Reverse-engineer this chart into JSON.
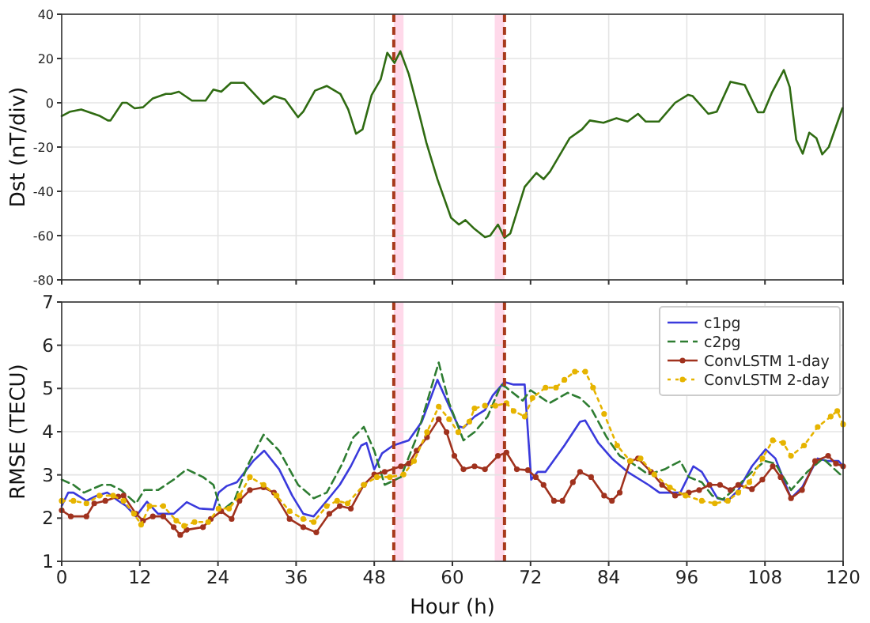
{
  "chart_data": [
    {
      "type": "line",
      "ylabel": "Dst (nT/div)",
      "xlim": [
        0,
        120
      ],
      "xticks": [
        0,
        12,
        24,
        36,
        48,
        60,
        72,
        84,
        96,
        108,
        120
      ],
      "ylim": [
        -80,
        40
      ],
      "yticks": [
        -80,
        -60,
        -40,
        -20,
        0,
        20,
        40
      ],
      "tick_labels": "y",
      "grid": true,
      "legend": false,
      "series": [
        {
          "color": "#2f6b12",
          "line_style": "solid",
          "marker": "none",
          "x": [
            0,
            1.3,
            3,
            5.9,
            7.1,
            7.5,
            9.3,
            10,
            11.2,
            12.5,
            14,
            16,
            16.8,
            18,
            20,
            22.1,
            23.3,
            24.5,
            26,
            28,
            31,
            32.6,
            34.3,
            36.3,
            37.1,
            38.9,
            40.7,
            42.8,
            44,
            45.2,
            46.2,
            47.6,
            49,
            50,
            51.1,
            52,
            53.3,
            54.9,
            56,
            57.7,
            59.8,
            61,
            62,
            63.4,
            65,
            65.8,
            67,
            68,
            68.9,
            71.1,
            72.9,
            74,
            75,
            78,
            79.9,
            81.1,
            83.2,
            85.2,
            86.9,
            88.5,
            89.7,
            91.7,
            94.2,
            96.2,
            96.9,
            99.3,
            100.6,
            102.7,
            104.9,
            106.9,
            107.8,
            109.1,
            110.9,
            111.8,
            112.8,
            113.8,
            114.8,
            115.9,
            116.8,
            117.8,
            119.9
          ],
          "values": [
            -6,
            -4,
            -3,
            -6,
            -8,
            -8,
            0,
            0,
            -2.5,
            -2,
            2,
            4,
            4,
            5,
            1,
            1,
            6,
            5,
            9,
            9,
            -0.5,
            3,
            1.5,
            -6.5,
            -4,
            5.5,
            7.6,
            4,
            -3,
            -14,
            -12,
            3.5,
            10.7,
            22.6,
            18,
            23.3,
            13,
            -5,
            -18,
            -34.5,
            -52,
            -55,
            -53,
            -57,
            -60.7,
            -60,
            -55,
            -61,
            -59,
            -38,
            -31.7,
            -34.5,
            -31,
            -16,
            -12,
            -8,
            -9,
            -7,
            -8.5,
            -5,
            -8.5,
            -8.5,
            0,
            3.6,
            3,
            -5,
            -4,
            9.5,
            8,
            -4.3,
            -4.3,
            4.8,
            14.8,
            7.1,
            -16.7,
            -23,
            -13.5,
            -16,
            -23.3,
            -20,
            -2.4
          ]
        }
      ],
      "ref_lines": [
        {
          "axis": "x",
          "value": 51,
          "color": "#a83a1c",
          "line_style": "dashed"
        },
        {
          "axis": "x",
          "value": 68,
          "color": "#a83a1c",
          "line_style": "dashed"
        }
      ],
      "bands": [
        {
          "axis": "x",
          "from": 51,
          "to": 52.5,
          "color": "#ffd9ea"
        },
        {
          "axis": "x",
          "from": 66.5,
          "to": 68,
          "color": "#ffd9ea"
        }
      ]
    },
    {
      "type": "line",
      "xlabel": "Hour (h)",
      "ylabel": "RMSE (TECU)",
      "xlim": [
        0,
        120
      ],
      "xticks": [
        0,
        12,
        24,
        36,
        48,
        60,
        72,
        84,
        96,
        108,
        120
      ],
      "ylim": [
        1,
        7
      ],
      "yticks": [
        1,
        2,
        3,
        4,
        5,
        6,
        7
      ],
      "grid": true,
      "legend": "top right",
      "series": [
        {
          "name": "c1pg",
          "color": "#3a3adc",
          "line_style": "solid",
          "marker": "none",
          "x": [
            0,
            1,
            1.8,
            3.8,
            5.4,
            7,
            8.7,
            9.9,
            11.4,
            13.1,
            14.8,
            17.2,
            19.2,
            21.2,
            23.3,
            24.1,
            25.3,
            26.9,
            29.4,
            31.1,
            33.4,
            35.4,
            37.1,
            38.7,
            40.7,
            42.7,
            44.4,
            46,
            46.8,
            48,
            49.2,
            50.9,
            52.1,
            53.3,
            55.3,
            57.7,
            59.3,
            60.9,
            61.7,
            63.4,
            65,
            66.2,
            68,
            69.4,
            71.1,
            72.1,
            73.1,
            74.3,
            77.2,
            79.6,
            80.4,
            82.4,
            84.5,
            86.9,
            90.1,
            91.8,
            95,
            97,
            98.3,
            100.7,
            102.3,
            103.9,
            106,
            108.1,
            109.6,
            112,
            113.7,
            116.1,
            117.7,
            119.3,
            120
          ],
          "values": [
            2.28,
            2.59,
            2.59,
            2.4,
            2.52,
            2.59,
            2.4,
            2.28,
            2.04,
            2.38,
            2.1,
            2.1,
            2.37,
            2.22,
            2.2,
            2.59,
            2.74,
            2.83,
            3.32,
            3.56,
            3.13,
            2.52,
            2.1,
            2.04,
            2.4,
            2.77,
            3.2,
            3.68,
            3.74,
            3.13,
            3.5,
            3.68,
            3.74,
            3.8,
            4.23,
            5.2,
            4.66,
            4.13,
            4.09,
            4.35,
            4.5,
            4.84,
            5.15,
            5.09,
            5.09,
            2.89,
            3.07,
            3.07,
            3.68,
            4.23,
            4.26,
            3.74,
            3.38,
            3.07,
            2.77,
            2.59,
            2.59,
            3.2,
            3.07,
            2.46,
            2.4,
            2.65,
            3.2,
            3.59,
            3.38,
            2.46,
            2.71,
            3.38,
            3.32,
            3.32,
            3.2
          ]
        },
        {
          "name": "c2pg",
          "color": "#2e7d32",
          "line_style": "dashed",
          "marker": "none",
          "x": [
            0,
            1.8,
            3.4,
            6.2,
            7.5,
            9.1,
            11.4,
            12.7,
            14.8,
            17.2,
            19.2,
            21.7,
            23.3,
            24.5,
            26.5,
            28.5,
            31,
            33.4,
            36.3,
            38.7,
            40.7,
            43.1,
            44.8,
            46.4,
            48,
            49.6,
            52.1,
            54.5,
            57.9,
            59.5,
            61.7,
            63.4,
            65.4,
            67.5,
            68.3,
            70.8,
            72,
            74.9,
            77.7,
            79.6,
            81.3,
            83.7,
            85.7,
            87.7,
            90.1,
            92.6,
            95,
            96.3,
            98.3,
            99.9,
            101.5,
            103.6,
            106,
            108,
            109.6,
            112,
            114.5,
            116.9,
            120
          ],
          "values": [
            2.89,
            2.77,
            2.59,
            2.77,
            2.77,
            2.65,
            2.34,
            2.65,
            2.65,
            2.89,
            3.13,
            2.95,
            2.77,
            2.16,
            2.4,
            3.2,
            3.93,
            3.56,
            2.77,
            2.46,
            2.59,
            3.26,
            3.87,
            4.11,
            3.56,
            2.77,
            2.95,
            3.87,
            5.6,
            4.66,
            3.8,
            3.99,
            4.35,
            5.09,
            5.02,
            4.72,
            4.96,
            4.66,
            4.9,
            4.78,
            4.54,
            3.87,
            3.44,
            3.26,
            3.01,
            3.13,
            3.32,
            2.95,
            2.83,
            2.52,
            2.43,
            2.71,
            3.07,
            3.32,
            3.26,
            2.65,
            3.07,
            3.38,
            2.95
          ]
        },
        {
          "name": "ConvLSTM 1-day",
          "color": "#a0321e",
          "line_style": "solid",
          "marker": "circle",
          "x": [
            0,
            1.4,
            3.8,
            5,
            6.7,
            8.7,
            9.5,
            11.4,
            12.5,
            14,
            15.6,
            17.2,
            18.2,
            19.2,
            21.7,
            22.9,
            24.5,
            26.1,
            27.3,
            28.9,
            31,
            32.6,
            35,
            37.1,
            39.1,
            41.1,
            42.7,
            44.4,
            46.4,
            48,
            49.6,
            52.1,
            53.3,
            54.5,
            56.1,
            57.9,
            59.1,
            60.3,
            61.7,
            63.4,
            65,
            67,
            68.3,
            69.9,
            71.6,
            72.8,
            74,
            75.6,
            76.9,
            78.5,
            79.6,
            81.3,
            83.3,
            84.5,
            85.7,
            87.3,
            88.5,
            90.5,
            92.2,
            94.2,
            96.3,
            97.9,
            99.5,
            101.1,
            102.7,
            103.9,
            106,
            107.6,
            109.2,
            110.4,
            112,
            113.7,
            115.7,
            117.7,
            118.9,
            120
          ],
          "values": [
            2.18,
            2.04,
            2.04,
            2.34,
            2.4,
            2.5,
            2.52,
            2.1,
            1.94,
            2.04,
            2.04,
            1.79,
            1.61,
            1.73,
            1.79,
            1.98,
            2.16,
            1.98,
            2.4,
            2.65,
            2.71,
            2.59,
            1.98,
            1.79,
            1.67,
            2.1,
            2.28,
            2.22,
            2.77,
            3.01,
            3.07,
            3.2,
            3.26,
            3.56,
            3.87,
            4.29,
            3.99,
            3.44,
            3.13,
            3.2,
            3.13,
            3.44,
            3.52,
            3.13,
            3.11,
            2.95,
            2.77,
            2.4,
            2.4,
            2.83,
            3.07,
            2.95,
            2.52,
            2.4,
            2.59,
            3.32,
            3.38,
            3.07,
            2.77,
            2.52,
            2.59,
            2.65,
            2.77,
            2.77,
            2.65,
            2.77,
            2.67,
            2.89,
            3.2,
            2.95,
            2.46,
            2.65,
            3.32,
            3.44,
            3.26,
            3.2
          ]
        },
        {
          "name": "ConvLSTM 2-day",
          "color": "#e6b400",
          "line_style": "dotted",
          "marker": "circle",
          "x": [
            0,
            1.8,
            3.8,
            5.8,
            7.9,
            9.5,
            11.1,
            12.2,
            13.5,
            15.6,
            17.6,
            18.8,
            20.4,
            22.5,
            24.1,
            25.7,
            27.3,
            28.9,
            31,
            33,
            35,
            37.1,
            38.7,
            40.7,
            42.3,
            43.9,
            46.4,
            48.4,
            50.4,
            52.5,
            54.1,
            56.1,
            57.9,
            59.5,
            60.9,
            62.6,
            63.4,
            65,
            66.6,
            68.3,
            69.4,
            71.1,
            72.3,
            74.3,
            75.9,
            77.2,
            78.8,
            80.4,
            81.6,
            83.3,
            85.3,
            87.3,
            88.9,
            91,
            93.4,
            95.8,
            98.3,
            100.3,
            102.3,
            103.9,
            105.6,
            107.6,
            109.2,
            110.8,
            112,
            114,
            116.1,
            118.1,
            119.1,
            120
          ],
          "values": [
            2.4,
            2.4,
            2.34,
            2.52,
            2.52,
            2.4,
            2.1,
            1.85,
            2.28,
            2.28,
            1.94,
            1.82,
            1.91,
            1.91,
            2.22,
            2.22,
            2.52,
            2.95,
            2.77,
            2.52,
            2.16,
            1.98,
            1.91,
            2.28,
            2.4,
            2.34,
            2.77,
            2.95,
            2.95,
            3.01,
            3.32,
            3.99,
            4.58,
            4.29,
            3.99,
            4.23,
            4.54,
            4.6,
            4.6,
            4.66,
            4.48,
            4.35,
            4.78,
            5.02,
            5.02,
            5.2,
            5.39,
            5.39,
            5.02,
            4.41,
            3.68,
            3.32,
            3.38,
            3.01,
            2.71,
            2.52,
            2.4,
            2.34,
            2.4,
            2.59,
            2.83,
            3.38,
            3.8,
            3.74,
            3.44,
            3.68,
            4.11,
            4.35,
            4.48,
            4.17
          ]
        }
      ],
      "ref_lines": [
        {
          "axis": "x",
          "value": 51,
          "color": "#a83a1c",
          "line_style": "dashed"
        },
        {
          "axis": "x",
          "value": 68,
          "color": "#a83a1c",
          "line_style": "dashed"
        }
      ],
      "bands": [
        {
          "axis": "x",
          "from": 51,
          "to": 52.5,
          "color": "#ffd9ea"
        },
        {
          "axis": "x",
          "from": 66.5,
          "to": 68,
          "color": "#ffd9ea"
        }
      ]
    }
  ]
}
